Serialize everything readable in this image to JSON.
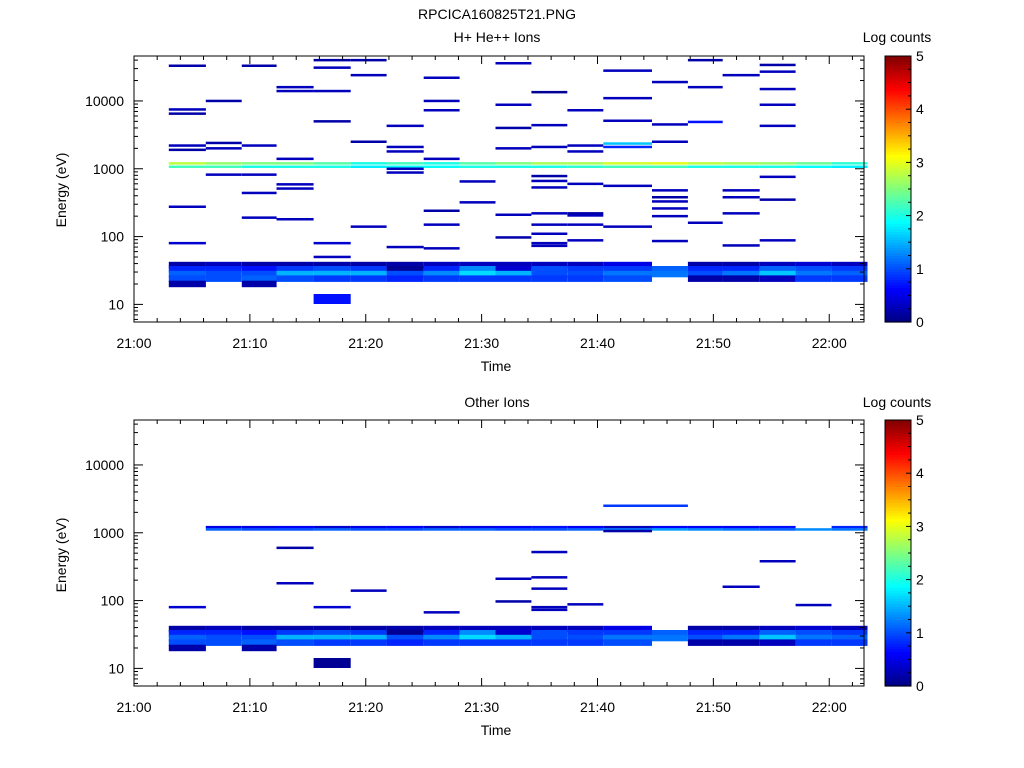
{
  "page_title": "RPCICA160825T21.PNG",
  "colors": {
    "axis": "#000000",
    "background": "#ffffff"
  },
  "chart_data": [
    {
      "type": "heatmap",
      "title": "H+ He++ Ions",
      "xlabel": "Time",
      "ylabel": "Energy (eV)",
      "colorbar_label": "Log counts",
      "x_ticks": [
        "21:00",
        "21:10",
        "21:20",
        "21:30",
        "21:40",
        "21:50",
        "22:00"
      ],
      "xlim_minutes": [
        0,
        63
      ],
      "y_scale": "log",
      "ylim": [
        5.5,
        46000
      ],
      "y_ticks": [
        "10",
        "100",
        "1000",
        "10000"
      ],
      "colorbar_range": [
        0,
        5
      ],
      "colorbar_ticks": [
        "0",
        "1",
        "2",
        "3",
        "4",
        "5"
      ],
      "time_bins_minutes": [
        3,
        6.2,
        9.3,
        12.3,
        15.5,
        18.7,
        21.8,
        25,
        28.1,
        31.2,
        34.3,
        37.4,
        40.5,
        44.7,
        47.8,
        50.8,
        54,
        57.1,
        60.2
      ],
      "cells": [
        {
          "t": 0,
          "e": 33000,
          "v": 0.2
        },
        {
          "t": 0,
          "e": 7500,
          "v": 0.3
        },
        {
          "t": 0,
          "e": 6500,
          "v": 0.2
        },
        {
          "t": 0,
          "e": 2200,
          "v": 0.3
        },
        {
          "t": 0,
          "e": 1900,
          "v": 0.2
        },
        {
          "t": 0,
          "e": 275,
          "v": 0.3
        },
        {
          "t": 0,
          "e": 80,
          "v": 0.4
        },
        {
          "t": 1,
          "e": 10000,
          "v": 0.2
        },
        {
          "t": 1,
          "e": 2400,
          "v": 0.2
        },
        {
          "t": 1,
          "e": 2000,
          "v": 0.3
        },
        {
          "t": 1,
          "e": 820,
          "v": 0.3
        },
        {
          "t": 2,
          "e": 33000,
          "v": 0.2
        },
        {
          "t": 2,
          "e": 2200,
          "v": 0.3
        },
        {
          "t": 2,
          "e": 820,
          "v": 0.3
        },
        {
          "t": 2,
          "e": 440,
          "v": 0.3
        },
        {
          "t": 2,
          "e": 190,
          "v": 0.3
        },
        {
          "t": 3,
          "e": 16000,
          "v": 0.3
        },
        {
          "t": 3,
          "e": 14000,
          "v": 0.3
        },
        {
          "t": 3,
          "e": 1400,
          "v": 0.3
        },
        {
          "t": 3,
          "e": 590,
          "v": 0.3
        },
        {
          "t": 3,
          "e": 510,
          "v": 0.3
        },
        {
          "t": 3,
          "e": 180,
          "v": 0.3
        },
        {
          "t": 4,
          "e": 40000,
          "v": 0.2
        },
        {
          "t": 4,
          "e": 31000,
          "v": 0.3
        },
        {
          "t": 4,
          "e": 14000,
          "v": 0.3
        },
        {
          "t": 4,
          "e": 5000,
          "v": 0.2
        },
        {
          "t": 4,
          "e": 80,
          "v": 0.4
        },
        {
          "t": 4,
          "e": 50,
          "v": 0.3
        },
        {
          "t": 5,
          "e": 40000,
          "v": 0.2
        },
        {
          "t": 5,
          "e": 24000,
          "v": 0.3
        },
        {
          "t": 5,
          "e": 2500,
          "v": 0.2
        },
        {
          "t": 5,
          "e": 140,
          "v": 0.3
        },
        {
          "t": 6,
          "e": 4300,
          "v": 0.3
        },
        {
          "t": 6,
          "e": 2100,
          "v": 0.3
        },
        {
          "t": 6,
          "e": 1800,
          "v": 0.3
        },
        {
          "t": 6,
          "e": 1000,
          "v": 0.3
        },
        {
          "t": 6,
          "e": 880,
          "v": 0.3
        },
        {
          "t": 6,
          "e": 70,
          "v": 0.3
        },
        {
          "t": 7,
          "e": 22000,
          "v": 0.3
        },
        {
          "t": 7,
          "e": 10000,
          "v": 0.3
        },
        {
          "t": 7,
          "e": 7300,
          "v": 0.3
        },
        {
          "t": 7,
          "e": 1400,
          "v": 0.3
        },
        {
          "t": 7,
          "e": 240,
          "v": 0.2
        },
        {
          "t": 7,
          "e": 150,
          "v": 0.3
        },
        {
          "t": 7,
          "e": 67,
          "v": 0.3
        },
        {
          "t": 8,
          "e": 650,
          "v": 0.3
        },
        {
          "t": 8,
          "e": 320,
          "v": 0.3
        },
        {
          "t": 9,
          "e": 36000,
          "v": 0.3
        },
        {
          "t": 9,
          "e": 8800,
          "v": 0.3
        },
        {
          "t": 9,
          "e": 4000,
          "v": 0.2
        },
        {
          "t": 9,
          "e": 2000,
          "v": 0.3
        },
        {
          "t": 9,
          "e": 210,
          "v": 0.3
        },
        {
          "t": 9,
          "e": 97,
          "v": 0.2
        },
        {
          "t": 10,
          "e": 13500,
          "v": 0.1
        },
        {
          "t": 10,
          "e": 4400,
          "v": 0.3
        },
        {
          "t": 10,
          "e": 2100,
          "v": 0.3
        },
        {
          "t": 10,
          "e": 780,
          "v": 0.2
        },
        {
          "t": 10,
          "e": 660,
          "v": 0.3
        },
        {
          "t": 10,
          "e": 530,
          "v": 0.3
        },
        {
          "t": 10,
          "e": 220,
          "v": 0.3
        },
        {
          "t": 10,
          "e": 150,
          "v": 0.3
        },
        {
          "t": 10,
          "e": 110,
          "v": 0.3
        },
        {
          "t": 10,
          "e": 80,
          "v": 0.3
        },
        {
          "t": 10,
          "e": 73,
          "v": 0.3
        },
        {
          "t": 11,
          "e": 7300,
          "v": 0.3
        },
        {
          "t": 11,
          "e": 2200,
          "v": 0.3
        },
        {
          "t": 11,
          "e": 1800,
          "v": 0.3
        },
        {
          "t": 11,
          "e": 600,
          "v": 0.3
        },
        {
          "t": 11,
          "e": 220,
          "v": 0.2
        },
        {
          "t": 11,
          "e": 205,
          "v": 0.3
        },
        {
          "t": 11,
          "e": 150,
          "v": 0.3
        },
        {
          "t": 11,
          "e": 88,
          "v": 0.3
        },
        {
          "t": 12,
          "e": 28000,
          "v": 0.3
        },
        {
          "t": 12,
          "e": 11000,
          "v": 0.3
        },
        {
          "t": 12,
          "e": 5100,
          "v": 0.3
        },
        {
          "t": 12,
          "e": 2350,
          "v": 1.6
        },
        {
          "t": 12,
          "e": 2100,
          "v": 0.8
        },
        {
          "t": 12,
          "e": 560,
          "v": 0.3
        },
        {
          "t": 12,
          "e": 140,
          "v": 0.3
        },
        {
          "t": 13,
          "e": 19000,
          "v": 0.3
        },
        {
          "t": 13,
          "e": 4500,
          "v": 0.3
        },
        {
          "t": 13,
          "e": 2500,
          "v": 0.3
        },
        {
          "t": 13,
          "e": 480,
          "v": 0.3
        },
        {
          "t": 13,
          "e": 380,
          "v": 0.2
        },
        {
          "t": 13,
          "e": 330,
          "v": 0.3
        },
        {
          "t": 13,
          "e": 260,
          "v": 0.3
        },
        {
          "t": 13,
          "e": 200,
          "v": 0.3
        },
        {
          "t": 13,
          "e": 86,
          "v": 0.3
        },
        {
          "t": 14,
          "e": 40000,
          "v": 0.2
        },
        {
          "t": 14,
          "e": 16000,
          "v": 0.3
        },
        {
          "t": 14,
          "e": 4900,
          "v": 0.7
        },
        {
          "t": 14,
          "e": 160,
          "v": 0.3
        },
        {
          "t": 15,
          "e": 24000,
          "v": 0.3
        },
        {
          "t": 15,
          "e": 480,
          "v": 0.3
        },
        {
          "t": 15,
          "e": 380,
          "v": 0.3
        },
        {
          "t": 15,
          "e": 220,
          "v": 0.3
        },
        {
          "t": 15,
          "e": 74,
          "v": 0.3
        },
        {
          "t": 16,
          "e": 34000,
          "v": 0.2
        },
        {
          "t": 16,
          "e": 27000,
          "v": 0.3
        },
        {
          "t": 16,
          "e": 15000,
          "v": 0.3
        },
        {
          "t": 16,
          "e": 8800,
          "v": 0.3
        },
        {
          "t": 16,
          "e": 4300,
          "v": 0.3
        },
        {
          "t": 16,
          "e": 760,
          "v": 0.3
        },
        {
          "t": 16,
          "e": 350,
          "v": 0.2
        },
        {
          "t": 16,
          "e": 88,
          "v": 0.3
        }
      ],
      "bands": [
        {
          "e": 1200,
          "values": [
            2.8,
            2.6,
            2.5,
            2.5,
            2.3,
            2.0,
            2.2,
            2.0,
            2.3,
            2.5,
            2.7,
            2.7,
            2.9,
            3.0,
            2.8,
            2.7,
            2.6,
            2.4,
            2.1
          ]
        },
        {
          "e": 1070,
          "values": [
            2.2,
            2.2,
            2.0,
            2.0,
            2.0,
            1.8,
            1.9,
            1.9,
            2.0,
            2.0,
            2.0,
            2.1,
            2.2,
            2.2,
            2.0,
            2.0,
            2.0,
            1.9,
            1.8
          ]
        },
        {
          "e": 38,
          "values": [
            0.2,
            0.3,
            0.2,
            0.2,
            0.2,
            0.2,
            0.2,
            0.3,
            0.3,
            0.3,
            0.3,
            0.3,
            0.5,
            null,
            0.2,
            0.2,
            0.3,
            0.4,
            0.3
          ]
        },
        {
          "e": 33,
          "values": [
            0.8,
            0.8,
            0.7,
            0.9,
            1.0,
            0.9,
            0.1,
            0.8,
            1.3,
            0.4,
            1.0,
            0.9,
            0.9,
            1.1,
            0.8,
            0.8,
            1.1,
            1.0,
            0.9
          ]
        },
        {
          "e": 28,
          "values": [
            1.1,
            1.0,
            1.0,
            1.5,
            1.5,
            1.5,
            1.0,
            1.3,
            1.7,
            1.5,
            1.0,
            1.0,
            1.2,
            1.2,
            1.0,
            1.2,
            1.6,
            1.2,
            1.1
          ]
        },
        {
          "e": 24,
          "values": [
            1.0,
            1.0,
            1.1,
            1.0,
            0.9,
            0.9,
            0.8,
            0.9,
            0.9,
            0.9,
            0.9,
            0.9,
            1.0,
            null,
            0.2,
            0.2,
            0.3,
            0.9,
            0.9
          ]
        },
        {
          "e": 20,
          "values": [
            0.2,
            null,
            0.2,
            null,
            null,
            null,
            null,
            null,
            null,
            null,
            null,
            null,
            null,
            null,
            null,
            null,
            null,
            null,
            null
          ]
        },
        {
          "e": 12,
          "values": [
            null,
            null,
            null,
            null,
            0.7,
            null,
            null,
            null,
            null,
            null,
            null,
            null,
            null,
            null,
            null,
            null,
            null,
            null,
            null
          ]
        }
      ]
    },
    {
      "type": "heatmap",
      "title": "Other Ions",
      "xlabel": "Time",
      "ylabel": "Energy (eV)",
      "colorbar_label": "Log counts",
      "x_ticks": [
        "21:00",
        "21:10",
        "21:20",
        "21:30",
        "21:40",
        "21:50",
        "22:00"
      ],
      "xlim_minutes": [
        0,
        63
      ],
      "y_scale": "log",
      "ylim": [
        5.5,
        46000
      ],
      "y_ticks": [
        "10",
        "100",
        "1000",
        "10000"
      ],
      "colorbar_range": [
        0,
        5
      ],
      "colorbar_ticks": [
        "0",
        "1",
        "2",
        "3",
        "4",
        "5"
      ],
      "time_bins_minutes": [
        3,
        6.2,
        9.3,
        12.3,
        15.5,
        18.7,
        21.8,
        25,
        28.1,
        31.2,
        34.3,
        37.4,
        40.5,
        44.7,
        47.8,
        50.8,
        54,
        57.1,
        60.2
      ],
      "cells": [
        {
          "t": 0,
          "e": 80,
          "v": 0.4
        },
        {
          "t": 3,
          "e": 600,
          "v": 0.2
        },
        {
          "t": 3,
          "e": 180,
          "v": 0.3
        },
        {
          "t": 4,
          "e": 80,
          "v": 0.4
        },
        {
          "t": 5,
          "e": 140,
          "v": 0.3
        },
        {
          "t": 7,
          "e": 67,
          "v": 0.3
        },
        {
          "t": 9,
          "e": 210,
          "v": 0.3
        },
        {
          "t": 9,
          "e": 97,
          "v": 0.2
        },
        {
          "t": 10,
          "e": 520,
          "v": 0.3
        },
        {
          "t": 10,
          "e": 220,
          "v": 0.3
        },
        {
          "t": 10,
          "e": 150,
          "v": 0.3
        },
        {
          "t": 10,
          "e": 80,
          "v": 0.3
        },
        {
          "t": 10,
          "e": 73,
          "v": 0.3
        },
        {
          "t": 11,
          "e": 88,
          "v": 0.3
        },
        {
          "t": 12,
          "e": 1060,
          "v": 0.2
        },
        {
          "t": 12,
          "e": 2500,
          "v": 0.9
        },
        {
          "t": 13,
          "e": 2500,
          "v": 0.9
        },
        {
          "t": 15,
          "e": 160,
          "v": 0.3
        },
        {
          "t": 16,
          "e": 380,
          "v": 0.3
        },
        {
          "t": 17,
          "e": 86,
          "v": 0.3
        }
      ],
      "bands": [
        {
          "e": 1210,
          "values": [
            null,
            0.5,
            0.5,
            0.6,
            0.4,
            0.5,
            0.6,
            0.4,
            0.5,
            0.6,
            0.7,
            0.6,
            0.3,
            0.6,
            0.6,
            0.6,
            0.7,
            null,
            0.8
          ]
        },
        {
          "e": 1120,
          "values": [
            null,
            1.1,
            1.0,
            1.0,
            1.1,
            1.0,
            1.0,
            1.1,
            1.1,
            1.0,
            1.0,
            1.1,
            1.2,
            1.4,
            1.3,
            1.2,
            1.1,
            1.3,
            1.2
          ]
        },
        {
          "e": 38,
          "values": [
            0.2,
            0.3,
            0.2,
            0.2,
            0.2,
            0.2,
            0.2,
            0.3,
            0.3,
            0.3,
            0.3,
            0.3,
            0.5,
            null,
            0.2,
            0.2,
            0.3,
            0.4,
            0.3
          ]
        },
        {
          "e": 33,
          "values": [
            0.8,
            0.8,
            0.7,
            0.9,
            1.0,
            0.9,
            0.1,
            0.8,
            1.3,
            0.4,
            1.0,
            0.9,
            0.9,
            1.1,
            0.8,
            0.8,
            1.1,
            1.0,
            0.9
          ]
        },
        {
          "e": 28,
          "values": [
            1.1,
            1.0,
            1.0,
            1.5,
            1.5,
            1.5,
            1.0,
            1.3,
            1.7,
            1.5,
            1.0,
            1.0,
            1.2,
            1.2,
            1.0,
            1.2,
            1.6,
            1.2,
            1.1
          ]
        },
        {
          "e": 24,
          "values": [
            1.0,
            1.0,
            1.1,
            1.0,
            0.9,
            0.9,
            0.8,
            0.9,
            0.9,
            0.9,
            0.9,
            0.9,
            1.0,
            null,
            0.2,
            0.2,
            0.3,
            0.9,
            0.9
          ]
        },
        {
          "e": 20,
          "values": [
            0.2,
            null,
            0.2,
            null,
            null,
            null,
            null,
            null,
            null,
            null,
            null,
            null,
            null,
            null,
            null,
            null,
            null,
            null,
            null
          ]
        },
        {
          "e": 12,
          "values": [
            null,
            null,
            null,
            null,
            0.1,
            null,
            null,
            null,
            null,
            null,
            null,
            null,
            null,
            null,
            null,
            null,
            null,
            null,
            null
          ]
        }
      ]
    }
  ]
}
